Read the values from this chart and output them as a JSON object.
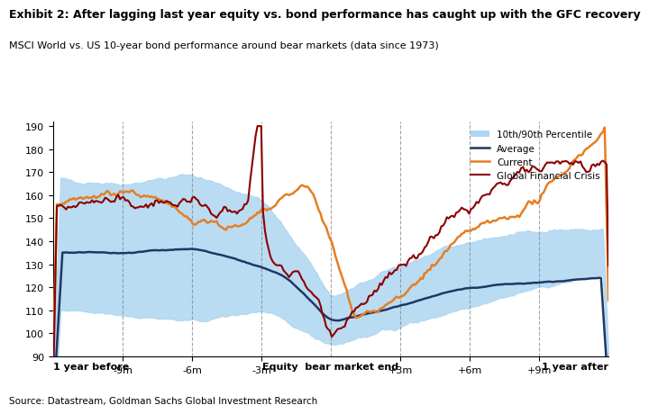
{
  "title": "Exhibit 2: After lagging last year equity vs. bond performance has caught up with the GFC recovery",
  "subtitle": "MSCI World vs. US 10-year bond performance around bear markets (data since 1973)",
  "source": "Source: Datastream, Goldman Sachs Global Investment Research",
  "xlabel_left": "1 year before",
  "xlabel_mid": "Equity  bear market end",
  "xlabel_right": "1 year after",
  "ylim": [
    90,
    192
  ],
  "yticks": [
    90,
    100,
    110,
    120,
    130,
    140,
    150,
    160,
    170,
    180,
    190
  ],
  "vline_positions": [
    -9,
    -6,
    -3,
    0,
    3,
    6,
    9
  ],
  "xtick_labels": [
    "-9m",
    "-6m",
    "-3m",
    "+3m",
    "+6m",
    "+9m"
  ],
  "xtick_positions": [
    -9,
    -6,
    -3,
    3,
    6,
    9
  ],
  "band_color": "#AED6F1",
  "average_color": "#1F3864",
  "current_color": "#E67E22",
  "gfc_color": "#8B0000",
  "legend_entries": [
    "10th/90th Percentile",
    "Average",
    "Current",
    "Global Financial Crisis"
  ]
}
